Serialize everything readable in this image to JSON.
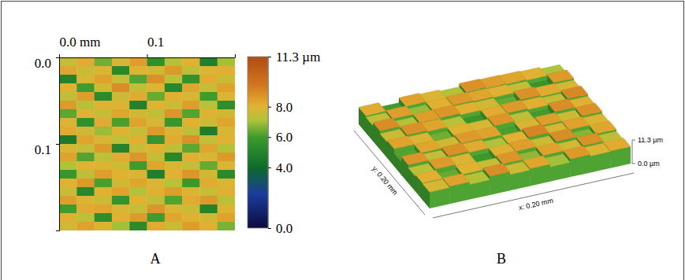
{
  "chart_data": [
    {
      "type": "heatmap",
      "title": "A",
      "xlim": [
        0,
        0.2
      ],
      "ylim": [
        0,
        0.2
      ],
      "xticks": [
        {
          "value": 0,
          "label": "0.0 mm"
        },
        {
          "value": 0.1,
          "label": "0.1"
        }
      ],
      "yticks": [
        {
          "value": 0,
          "label": "0.0"
        },
        {
          "value": 0.1,
          "label": "0.1"
        }
      ],
      "colorbar": {
        "range": [
          0,
          11.3
        ],
        "ticks": [
          {
            "value": 0,
            "label": "0.0"
          },
          {
            "value": 4,
            "label": "4.0"
          },
          {
            "value": 6,
            "label": "6.0"
          },
          {
            "value": 8,
            "label": "8.0"
          },
          {
            "value": 11.3,
            "label": "11.3 µm"
          }
        ]
      },
      "cells": [
        [
          7.5,
          8.2,
          6.5,
          7.8,
          8.5,
          5.5,
          7.2,
          8.0,
          4.8,
          7.0
        ],
        [
          8.3,
          7.6,
          7.9,
          5.2,
          8.0,
          7.7,
          8.6,
          7.4,
          7.9,
          8.1
        ],
        [
          5.0,
          7.8,
          8.4,
          7.5,
          6.2,
          8.8,
          7.3,
          5.6,
          8.2,
          7.6
        ],
        [
          8.1,
          6.0,
          7.7,
          8.9,
          7.4,
          7.9,
          5.1,
          8.3,
          7.5,
          8.4
        ],
        [
          7.4,
          8.5,
          5.3,
          7.6,
          8.2,
          6.4,
          8.1,
          7.8,
          6.0,
          7.9
        ],
        [
          8.6,
          7.2,
          8.0,
          7.9,
          4.9,
          8.0,
          7.6,
          8.5,
          7.3,
          5.4
        ],
        [
          6.3,
          8.0,
          7.5,
          8.3,
          7.7,
          7.4,
          8.7,
          6.2,
          8.0,
          7.7
        ],
        [
          7.9,
          5.5,
          8.2,
          6.1,
          8.4,
          7.8,
          5.8,
          8.0,
          7.6,
          8.3
        ],
        [
          8.2,
          7.7,
          6.9,
          8.0,
          7.5,
          8.6,
          7.9,
          7.4,
          4.7,
          7.8
        ],
        [
          4.6,
          8.3,
          7.8,
          7.4,
          8.1,
          5.7,
          8.2,
          8.8,
          7.5,
          8.0
        ],
        [
          7.8,
          7.5,
          8.6,
          5.0,
          7.6,
          8.0,
          7.4,
          6.3,
          8.3,
          7.2
        ],
        [
          8.4,
          6.2,
          7.3,
          8.2,
          8.7,
          7.5,
          5.2,
          8.1,
          7.8,
          8.6
        ],
        [
          7.1,
          8.0,
          7.9,
          7.6,
          6.0,
          8.3,
          7.8,
          7.5,
          6.4,
          7.9
        ],
        [
          5.8,
          7.4,
          8.5,
          8.0,
          7.8,
          4.8,
          8.0,
          8.7,
          7.7,
          5.3
        ],
        [
          8.0,
          8.6,
          6.1,
          7.7,
          8.3,
          7.9,
          7.3,
          5.9,
          8.2,
          7.8
        ],
        [
          7.6,
          5.1,
          8.0,
          8.4,
          7.2,
          8.1,
          8.5,
          7.9,
          7.5,
          8.1
        ],
        [
          8.5,
          7.9,
          7.6,
          5.6,
          8.0,
          7.4,
          6.2,
          8.2,
          8.6,
          7.3
        ],
        [
          6.0,
          8.2,
          8.3,
          7.8,
          7.5,
          8.7,
          7.9,
          7.6,
          5.0,
          7.9
        ],
        [
          8.1,
          7.3,
          5.4,
          8.1,
          8.6,
          6.0,
          8.3,
          8.0,
          7.7,
          8.4
        ],
        [
          7.7,
          8.4,
          7.9,
          7.0,
          5.3,
          8.2,
          7.6,
          8.5,
          8.1,
          6.6
        ]
      ]
    },
    {
      "type": "surface",
      "title": "B",
      "xlim": [
        0,
        0.2
      ],
      "ylim": [
        0,
        0.2
      ],
      "zlim": [
        0,
        11.3
      ],
      "x_label": "x: 0.20 mm",
      "y_label": "y: 0.20 mm",
      "zticks": [
        {
          "value": 11.3,
          "label": "11.3 µm"
        },
        {
          "value": 0,
          "label": "0.0 µm"
        }
      ],
      "cells": [
        [
          7.8,
          8.4,
          7.2,
          8.9,
          7.6,
          8.3,
          7.0,
          8.6,
          7.9,
          8.2
        ],
        [
          8.1,
          6.4,
          8.0,
          7.5,
          8.7,
          6.8,
          8.4,
          7.7,
          8.8,
          7.4
        ],
        [
          7.3,
          8.6,
          7.9,
          5.9,
          8.1,
          8.5,
          7.6,
          8.9,
          6.7,
          8.3
        ],
        [
          8.7,
          7.5,
          8.8,
          8.2,
          7.1,
          8.0,
          9.1,
          7.8,
          8.4,
          7.9
        ],
        [
          6.2,
          8.3,
          7.7,
          8.6,
          8.4,
          6.1,
          7.9,
          8.5,
          7.6,
          8.8
        ],
        [
          8.4,
          7.9,
          6.5,
          8.0,
          7.8,
          8.7,
          7.4,
          6.0,
          8.9,
          8.1
        ],
        [
          7.6,
          8.8,
          8.3,
          7.3,
          5.8,
          8.2,
          8.6,
          8.1,
          7.5,
          9.0
        ],
        [
          8.9,
          7.2,
          8.5,
          8.7,
          8.0,
          7.7,
          6.4,
          8.8,
          8.2,
          7.8
        ],
        [
          7.4,
          8.5,
          6.9,
          8.1,
          8.6,
          8.3,
          8.0,
          7.5,
          5.7,
          8.6
        ],
        [
          8.2,
          6.0,
          8.4,
          7.9,
          7.2,
          8.8,
          8.5,
          8.3,
          8.0,
          7.1
        ]
      ]
    }
  ]
}
